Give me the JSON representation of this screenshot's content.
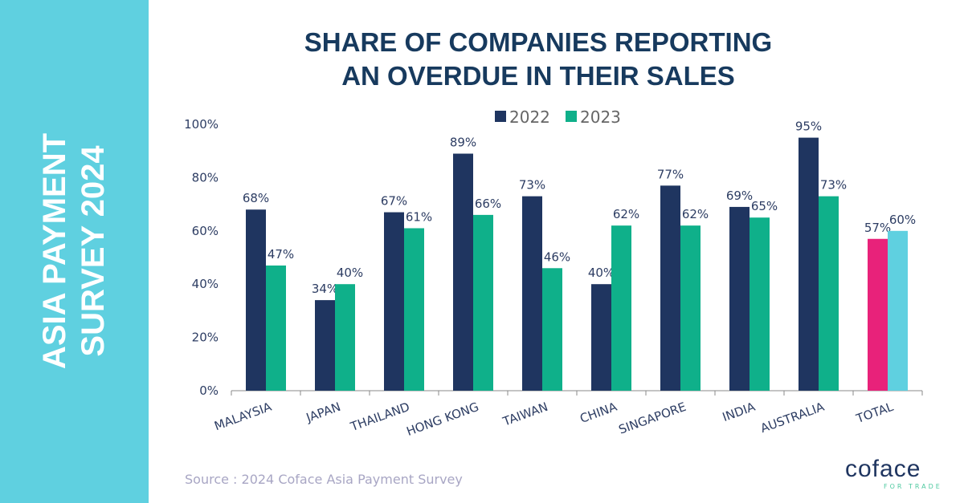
{
  "sidebar": {
    "line1": "ASIA PAYMENT",
    "line2": "SURVEY 2024"
  },
  "colors": {
    "sidebar": "#5fd0e0",
    "title": "#173a5e",
    "s2022": "#1f3560",
    "s2023": "#0fb08a",
    "total2022": "#e8227a",
    "total2023": "#5fd0e0"
  },
  "chart_data": {
    "type": "bar",
    "title": "SHARE OF COMPANIES REPORTING AN OVERDUE IN THEIR SALES",
    "title_line1": "SHARE OF COMPANIES REPORTING",
    "title_line2": "AN OVERDUE IN THEIR SALES",
    "categories": [
      "MALAYSIA",
      "JAPAN",
      "THAILAND",
      "HONG KONG",
      "TAIWAN",
      "CHINA",
      "SINGAPORE",
      "INDIA",
      "AUSTRALIA",
      "TOTAL"
    ],
    "series": [
      {
        "name": "2022",
        "values": [
          68,
          34,
          67,
          89,
          73,
          40,
          77,
          69,
          95,
          57
        ]
      },
      {
        "name": "2023",
        "values": [
          47,
          40,
          61,
          66,
          46,
          62,
          62,
          65,
          73,
          60
        ]
      }
    ],
    "ylim": [
      0,
      100
    ],
    "yticks": [
      "0%",
      "20%",
      "40%",
      "60%",
      "80%",
      "100%"
    ],
    "legend": "top",
    "grid": false
  },
  "source": "Source : 2024 Coface Asia Payment Survey",
  "logo": {
    "name": "coface",
    "tagline": "FOR TRADE"
  }
}
